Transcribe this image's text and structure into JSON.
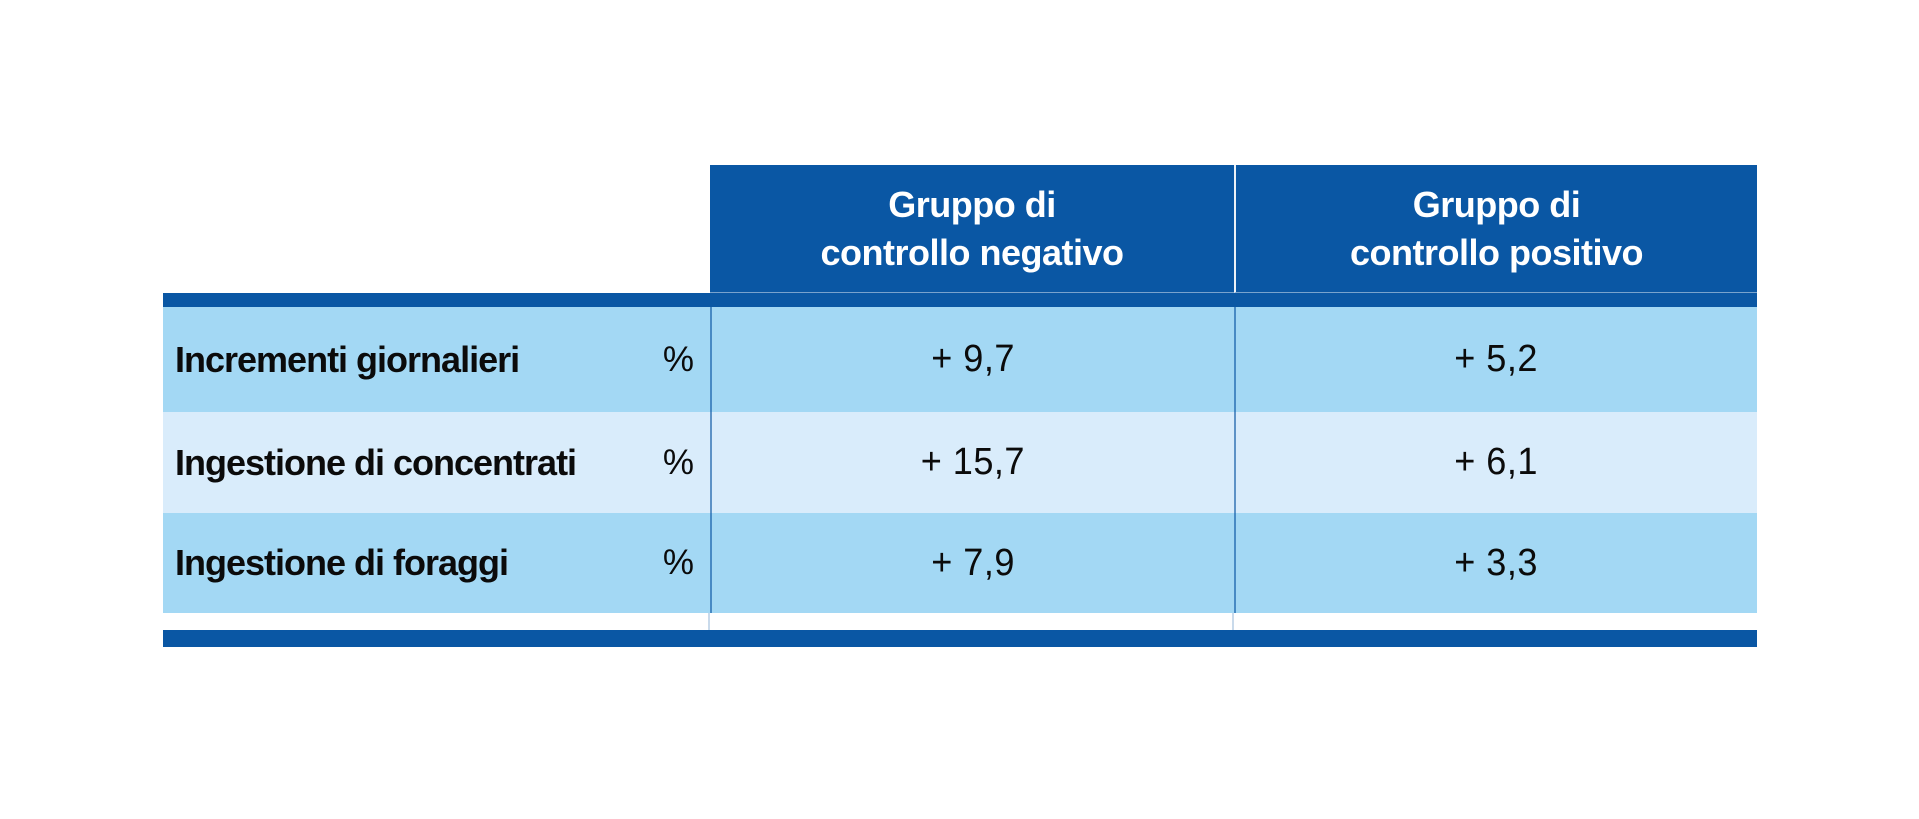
{
  "colors": {
    "primary_blue": "#0A57A4",
    "row_blue": "#A3D8F4",
    "row_blue_light": "#D9ECFB",
    "header_text": "#FFFFFF",
    "body_text": "#0B0B0B"
  },
  "table": {
    "header": [
      {
        "label": "Gruppo di\ncontrollo negativo"
      },
      {
        "label": "Gruppo di\ncontrollo positivo"
      }
    ],
    "rows": [
      {
        "label": "Incrementi giornalieri",
        "unit": "%",
        "negative": "+ 9,7",
        "positive": "+ 5,2"
      },
      {
        "label": "Ingestione di concentrati",
        "unit": "%",
        "negative": "+ 15,7",
        "positive": "+ 6,1"
      },
      {
        "label": "Ingestione di foraggi",
        "unit": "%",
        "negative": "+ 7,9",
        "positive": "+ 3,3"
      }
    ]
  },
  "chart_data": {
    "type": "table",
    "title": "",
    "columns": [
      "",
      "",
      "Gruppo di controllo negativo",
      "Gruppo di controllo positivo"
    ],
    "rows": [
      [
        "Incrementi giornalieri",
        "%",
        "+ 9,7",
        "+ 5,2"
      ],
      [
        "Ingestione di concentrati",
        "%",
        "+ 15,7",
        "+ 6,1"
      ],
      [
        "Ingestione di foraggi",
        "%",
        "+ 7,9",
        "+ 3,3"
      ]
    ],
    "notes": "Values are percent changes with Italian decimal commas; dark blue header band spans only the two group columns; accent bars above first row and below last row."
  }
}
